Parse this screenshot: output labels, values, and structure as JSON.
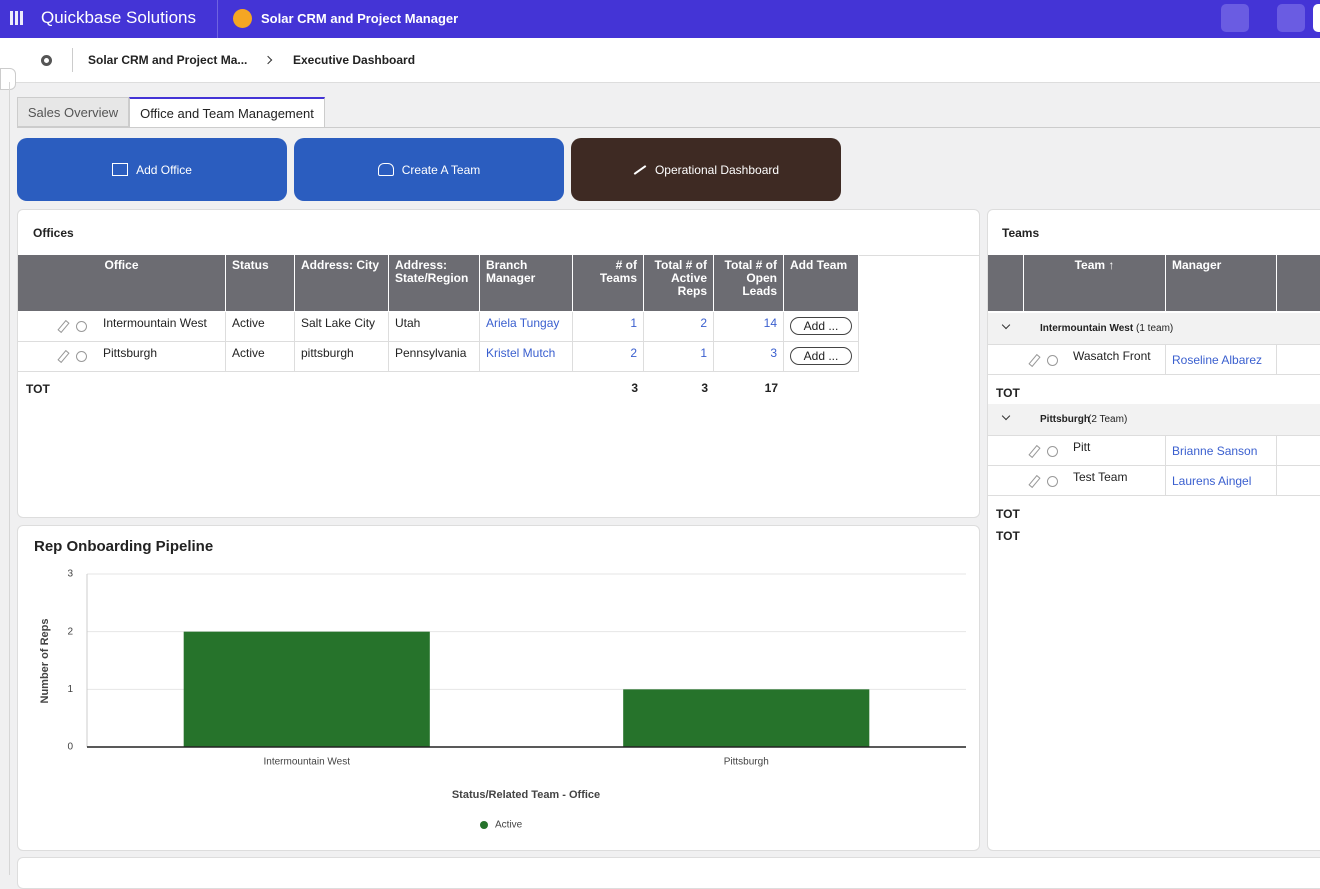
{
  "topbar": {
    "app_group": "Quickbase Solutions",
    "app_name": "Solar CRM and Project Manager"
  },
  "breadcrumb": [
    "Solar CRM and Project Ma...",
    "Executive Dashboard"
  ],
  "tabs": [
    "Sales Overview",
    "Office and Team Management"
  ],
  "buttons": [
    "Add Office",
    "Create A Team",
    "Operational Dashboard"
  ],
  "offices": {
    "title": "Offices",
    "columns": [
      "Office",
      "Status",
      "Address: City",
      "Address: State/Region",
      "Branch Manager",
      "# of Teams",
      "Total # of Active Reps",
      "Total # of Open Leads",
      "Add Team"
    ],
    "rows": [
      [
        "Intermountain West",
        "Active",
        "Salt Lake City",
        "Utah",
        "Ariela Tungay",
        1,
        2,
        14
      ],
      [
        "Pittsburgh",
        "Active",
        "pittsburgh",
        "Pennsylvania",
        "Kristel Mutch",
        2,
        1,
        3
      ]
    ],
    "add_label": "Add ...",
    "total_label": "TOT",
    "totals": [
      3,
      3,
      17
    ]
  },
  "teams": {
    "title": "Teams",
    "columns": [
      "Team ↑",
      "Manager"
    ],
    "total_label": "TOT",
    "groups": [
      {
        "name": "Intermountain West",
        "count": "(1 team)",
        "rows": [
          [
            "Wasatch Front",
            "Roseline Albarez"
          ]
        ]
      },
      {
        "name": "Pittsburgh",
        "count": "(2 Team)",
        "rows": [
          [
            "Pitt",
            "Brianne Sanson"
          ],
          [
            "Test Team",
            "Laurens Aingel"
          ]
        ]
      }
    ]
  },
  "chart_data": {
    "type": "bar",
    "title": "Rep Onboarding Pipeline",
    "y_label": "Number of Reps",
    "x_label": "Status/Related Team - Office",
    "categories": [
      "Intermountain West",
      "Pittsburgh"
    ],
    "series": [
      {
        "name": "Active",
        "color": "#26732b",
        "values": [
          2,
          1
        ]
      }
    ],
    "ylim": [
      0,
      3
    ],
    "yticks": [
      0,
      1,
      2,
      3
    ],
    "grid": true
  }
}
